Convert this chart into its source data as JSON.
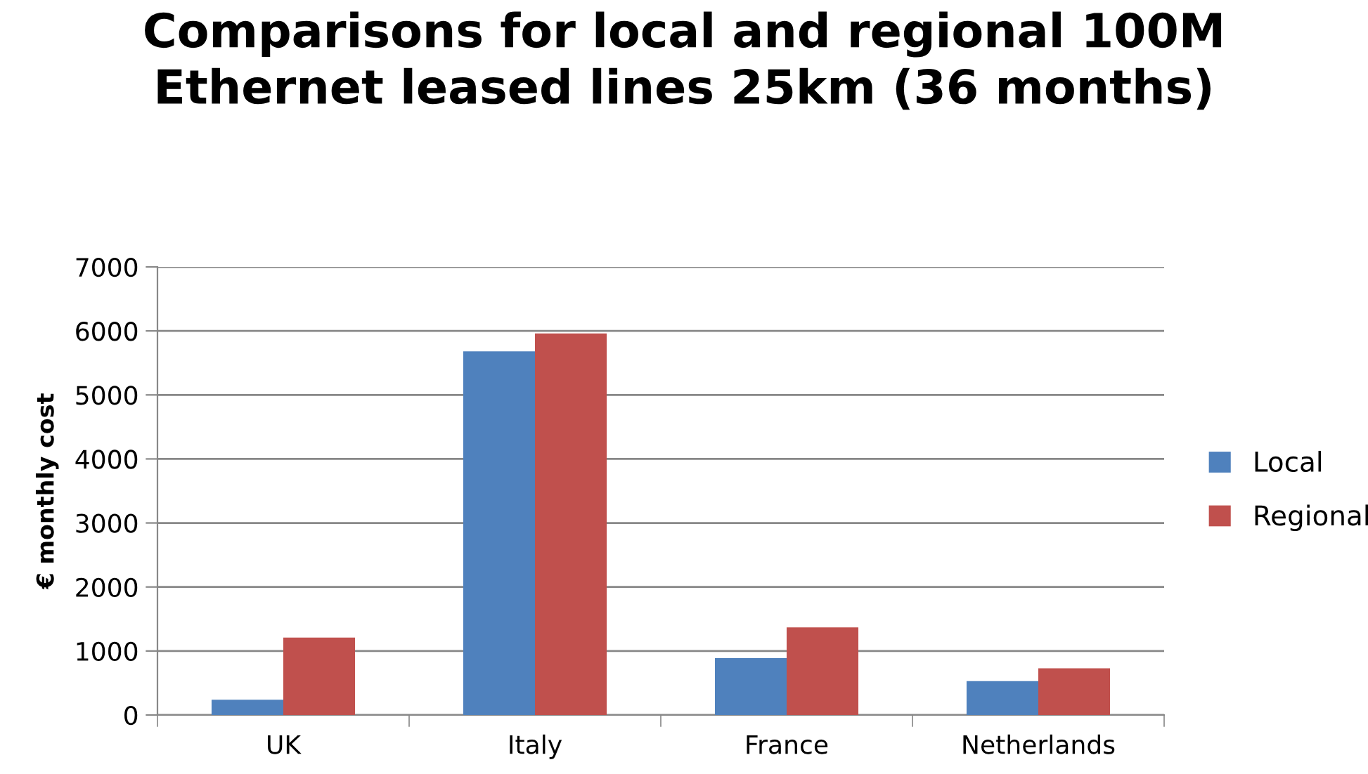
{
  "chart_data": {
    "type": "bar",
    "title": "Comparisons for local and regional 100M\nEthernet leased lines 25km (36 months)",
    "ylabel": "€ monthly cost",
    "categories": [
      "UK",
      "Italy",
      "France",
      "Netherlands"
    ],
    "series": [
      {
        "name": "Local",
        "color": "#4f81bd",
        "values": [
          240,
          5680,
          890,
          530
        ]
      },
      {
        "name": "Regional",
        "color": "#c0504d",
        "values": [
          1210,
          5960,
          1370,
          730
        ]
      }
    ],
    "ylim": [
      0,
      7000
    ],
    "yticks": [
      0,
      1000,
      2000,
      3000,
      4000,
      5000,
      6000,
      7000
    ],
    "grid": "y",
    "legend": "right"
  }
}
